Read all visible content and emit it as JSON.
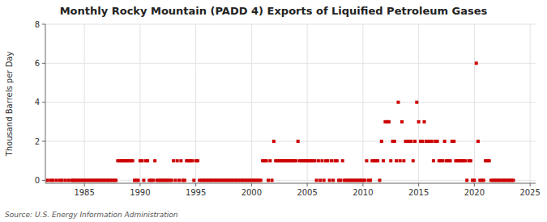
{
  "chart_data": {
    "type": "scatter",
    "title": "Monthly Rocky Mountain (PADD 4) Exports of Liquified Petroleum Gases",
    "y_label": "Thousand Barrels per Day",
    "annotations": [
      "Source: U.S. Energy Information Administration"
    ],
    "xlim": [
      1981.5,
      2025.5
    ],
    "ylim": [
      -0.15,
      8
    ],
    "xticks": [
      1985,
      1990,
      1995,
      2000,
      2005,
      2010,
      2015,
      2020,
      2025
    ],
    "yticks": [
      0,
      2,
      4,
      6,
      8
    ],
    "grid": true,
    "color": "#cc0000",
    "marker": "square",
    "x": [
      1981.7,
      1982.0,
      1982.2,
      1982.5,
      1982.8,
      1983.0,
      1983.3,
      1983.6,
      1983.9,
      1984.0,
      1984.17,
      1984.33,
      1984.5,
      1984.67,
      1984.83,
      1985.0,
      1985.17,
      1985.33,
      1985.5,
      1985.67,
      1985.83,
      1986.0,
      1986.17,
      1986.33,
      1986.5,
      1986.67,
      1986.83,
      1987.0,
      1987.17,
      1987.33,
      1987.5,
      1987.67,
      1987.83,
      1988.0,
      1988.17,
      1988.33,
      1988.5,
      1988.67,
      1988.83,
      1989.0,
      1989.17,
      1989.33,
      1989.5,
      1989.67,
      1989.83,
      1990.0,
      1990.17,
      1990.33,
      1990.5,
      1990.67,
      1990.83,
      1991.0,
      1991.17,
      1991.33,
      1991.5,
      1991.67,
      1991.83,
      1992.0,
      1992.17,
      1992.33,
      1992.5,
      1992.67,
      1992.83,
      1993.0,
      1993.17,
      1993.33,
      1993.5,
      1993.67,
      1993.83,
      1994.0,
      1994.17,
      1994.33,
      1994.5,
      1994.67,
      1994.83,
      1995.0,
      1995.17,
      1995.33,
      1995.5,
      1995.67,
      1995.83,
      1996.0,
      1996.17,
      1996.33,
      1996.5,
      1996.67,
      1996.83,
      1997.0,
      1997.17,
      1997.33,
      1997.5,
      1997.67,
      1997.83,
      1998.0,
      1998.17,
      1998.33,
      1998.5,
      1998.67,
      1998.83,
      1999.0,
      1999.17,
      1999.33,
      1999.5,
      1999.67,
      1999.83,
      2000.0,
      2000.17,
      2000.33,
      2000.5,
      2000.67,
      2000.83,
      2001.0,
      2001.17,
      2001.33,
      2001.5,
      2001.67,
      2001.83,
      2002.0,
      2002.17,
      2002.33,
      2002.5,
      2002.67,
      2002.83,
      2003.0,
      2003.17,
      2003.33,
      2003.5,
      2003.67,
      2003.83,
      2004.0,
      2004.17,
      2004.33,
      2004.5,
      2004.67,
      2004.83,
      2005.0,
      2005.17,
      2005.33,
      2005.5,
      2005.67,
      2005.83,
      2006.0,
      2006.17,
      2006.33,
      2006.5,
      2006.67,
      2006.83,
      2007.0,
      2007.17,
      2007.33,
      2007.5,
      2007.67,
      2007.83,
      2008.0,
      2008.17,
      2008.33,
      2008.5,
      2008.67,
      2008.83,
      2009.0,
      2009.17,
      2009.33,
      2009.5,
      2009.67,
      2009.83,
      2010.0,
      2010.17,
      2010.33,
      2010.5,
      2010.67,
      2010.83,
      2011.0,
      2011.17,
      2011.33,
      2011.5,
      2011.67,
      2011.83,
      2012.0,
      2012.17,
      2012.33,
      2012.5,
      2012.67,
      2012.83,
      2013.0,
      2013.17,
      2013.33,
      2013.5,
      2013.67,
      2013.83,
      2014.0,
      2014.17,
      2014.33,
      2014.5,
      2014.67,
      2014.83,
      2015.0,
      2015.17,
      2015.33,
      2015.5,
      2015.67,
      2015.83,
      2016.0,
      2016.17,
      2016.33,
      2016.5,
      2016.67,
      2016.83,
      2017.0,
      2017.17,
      2017.33,
      2017.5,
      2017.67,
      2017.83,
      2018.0,
      2018.17,
      2018.33,
      2018.5,
      2018.67,
      2018.83,
      2019.0,
      2019.17,
      2019.33,
      2019.5,
      2019.67,
      2019.83,
      2020.0,
      2020.17,
      2020.33,
      2020.5,
      2020.67,
      2020.83,
      2021.0,
      2021.17,
      2021.33,
      2021.5,
      2021.67,
      2021.83,
      2022.0,
      2022.17,
      2022.33,
      2022.5,
      2022.67,
      2022.83,
      2023.0,
      2023.17,
      2023.33,
      2023.5
    ],
    "values": [
      0,
      0,
      0,
      0,
      0,
      0,
      0,
      0,
      0,
      0,
      0,
      0,
      0,
      0,
      0,
      0,
      0,
      0,
      0,
      0,
      0,
      0,
      0,
      0,
      0,
      0,
      0,
      0,
      0,
      0,
      0,
      0,
      0,
      1,
      1,
      1,
      1,
      1,
      1,
      1,
      1,
      1,
      0,
      0,
      0,
      1,
      1,
      0,
      1,
      1,
      0,
      0,
      0,
      1,
      0,
      0,
      0,
      0,
      0,
      0,
      0,
      0,
      0,
      1,
      0,
      1,
      0,
      1,
      0,
      0,
      1,
      1,
      1,
      1,
      0,
      1,
      1,
      0,
      0,
      0,
      0,
      0,
      0,
      0,
      0,
      0,
      0,
      0,
      0,
      0,
      0,
      0,
      0,
      0,
      0,
      0,
      0,
      0,
      0,
      0,
      0,
      0,
      0,
      0,
      0,
      0,
      0,
      0,
      0,
      0,
      0,
      1,
      1,
      1,
      0,
      1,
      0,
      2,
      1,
      1,
      1,
      1,
      1,
      1,
      1,
      1,
      1,
      1,
      1,
      1,
      2,
      1,
      1,
      1,
      1,
      1,
      1,
      1,
      1,
      1,
      0,
      1,
      0,
      1,
      0,
      1,
      1,
      0,
      1,
      0,
      1,
      1,
      0,
      0,
      1,
      0,
      0,
      0,
      0,
      0,
      0,
      0,
      0,
      0,
      0,
      0,
      0,
      1,
      0,
      0,
      1,
      1,
      1,
      1,
      0,
      2,
      1,
      3,
      3,
      3,
      1,
      2,
      2,
      1,
      4,
      1,
      3,
      1,
      2,
      2,
      2,
      2,
      1,
      2,
      4,
      3,
      2,
      2,
      3,
      2,
      2,
      2,
      2,
      1,
      2,
      2,
      1,
      1,
      1,
      2,
      1,
      1,
      1,
      2,
      2,
      1,
      1,
      1,
      1,
      1,
      1,
      0,
      1,
      1,
      0,
      0,
      6,
      2,
      0,
      0,
      0,
      1,
      1,
      1,
      0,
      0,
      0,
      0,
      0,
      0,
      0,
      0,
      0,
      0,
      0,
      0,
      0
    ]
  }
}
